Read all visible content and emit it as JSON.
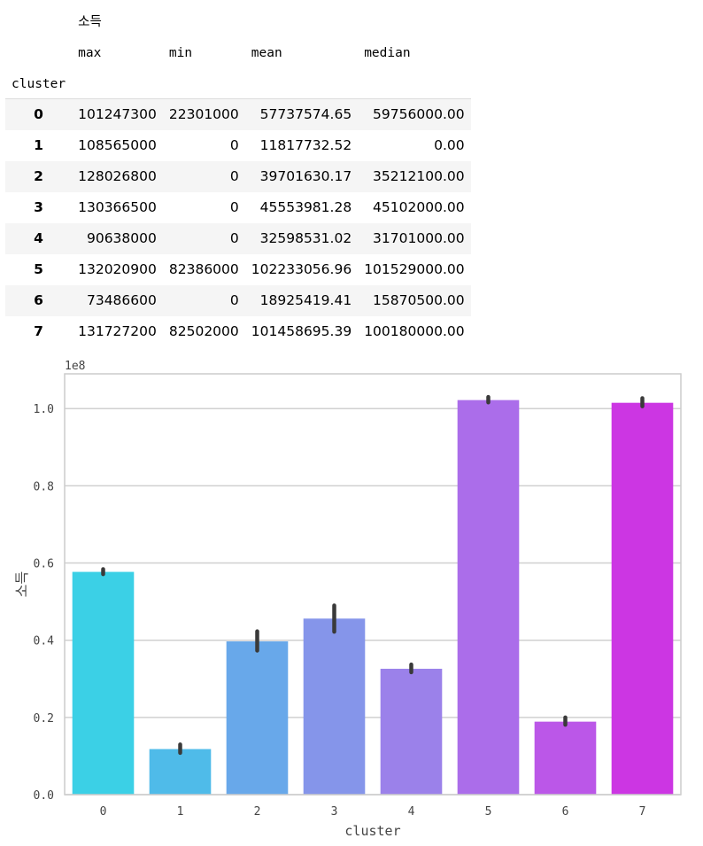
{
  "table": {
    "group_header": "소득",
    "stat_headers": [
      "max",
      "min",
      "mean",
      "median"
    ],
    "index_name": "cluster",
    "rows": [
      {
        "cluster": "0",
        "max": "101247300",
        "min": "22301000",
        "mean": "57737574.65",
        "median": "59756000.00"
      },
      {
        "cluster": "1",
        "max": "108565000",
        "min": "0",
        "mean": "11817732.52",
        "median": "0.00"
      },
      {
        "cluster": "2",
        "max": "128026800",
        "min": "0",
        "mean": "39701630.17",
        "median": "35212100.00"
      },
      {
        "cluster": "3",
        "max": "130366500",
        "min": "0",
        "mean": "45553981.28",
        "median": "45102000.00"
      },
      {
        "cluster": "4",
        "max": "90638000",
        "min": "0",
        "mean": "32598531.02",
        "median": "31701000.00"
      },
      {
        "cluster": "5",
        "max": "132020900",
        "min": "82386000",
        "mean": "102233056.96",
        "median": "101529000.00"
      },
      {
        "cluster": "6",
        "max": "73486600",
        "min": "0",
        "mean": "18925419.41",
        "median": "15870500.00"
      },
      {
        "cluster": "7",
        "max": "131727200",
        "min": "82502000",
        "mean": "101458695.39",
        "median": "100180000.00"
      }
    ]
  },
  "chart_data": {
    "type": "bar",
    "categories": [
      "0",
      "1",
      "2",
      "3",
      "4",
      "5",
      "6",
      "7"
    ],
    "values": [
      0.577,
      0.118,
      0.397,
      0.456,
      0.326,
      1.022,
      0.189,
      1.015
    ],
    "error_low": [
      0.571,
      0.108,
      0.373,
      0.422,
      0.317,
      1.016,
      0.181,
      1.006
    ],
    "error_high": [
      0.584,
      0.13,
      0.423,
      0.49,
      0.337,
      1.03,
      0.2,
      1.027
    ],
    "colors": [
      "#3bd0e6",
      "#4fbbe9",
      "#68a8ea",
      "#8595ea",
      "#9b81ea",
      "#ab6dea",
      "#bb57e8",
      "#cc36e3"
    ],
    "error_color": "#3a3a3a",
    "axis_color": "#cccccc",
    "grid_color": "#d0d0d0",
    "title": "",
    "xlabel": "cluster",
    "ylabel": "소득",
    "offset_label": "1e8",
    "yticks": [
      0.0,
      0.2,
      0.4,
      0.6,
      0.8,
      1.0
    ],
    "ytick_labels": [
      "0.0",
      "0.2",
      "0.4",
      "0.6",
      "0.8",
      "1.0"
    ],
    "ylim": [
      0,
      1.09
    ]
  }
}
